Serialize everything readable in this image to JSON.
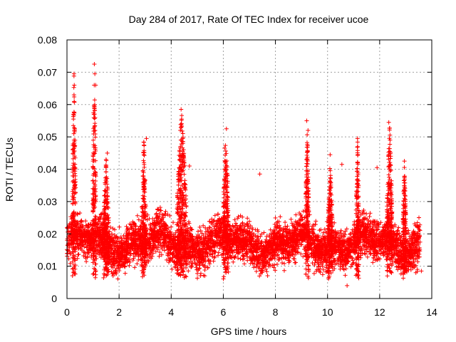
{
  "chart_data": {
    "type": "scatter",
    "title": "Day 284 of 2017, Rate Of TEC Index for receiver ucoe",
    "xlabel": "GPS time / hours",
    "ylabel": "ROTI / TECUs",
    "xlim": [
      0,
      14
    ],
    "ylim": [
      0,
      0.08
    ],
    "xticks": [
      0,
      2,
      4,
      6,
      8,
      10,
      12,
      14
    ],
    "xtick_labels": [
      "0",
      "2",
      "4",
      "6",
      "8",
      "10",
      "12",
      "14"
    ],
    "yticks": [
      0,
      0.01,
      0.02,
      0.03,
      0.04,
      0.05,
      0.06,
      0.07,
      0.08
    ],
    "ytick_labels": [
      "0",
      "0.01",
      "0.02",
      "0.03",
      "0.04",
      "0.05",
      "0.06",
      "0.07",
      "0.08"
    ],
    "grid": true,
    "marker": "plus",
    "color": "#ff0000",
    "series": [
      {
        "name": "ROTI",
        "x_range": [
          0.0,
          13.55
        ],
        "typical_range": [
          0.006,
          0.035
        ],
        "highlights": [
          {
            "x": 0.27,
            "y": 0.0695
          },
          {
            "x": 0.28,
            "y": 0.066
          },
          {
            "x": 0.27,
            "y": 0.063
          },
          {
            "x": 0.25,
            "y": 0.057
          },
          {
            "x": 0.3,
            "y": 0.0525
          },
          {
            "x": 0.27,
            "y": 0.049
          },
          {
            "x": 1.05,
            "y": 0.0725
          },
          {
            "x": 1.07,
            "y": 0.0695
          },
          {
            "x": 1.1,
            "y": 0.066
          },
          {
            "x": 1.02,
            "y": 0.0575
          },
          {
            "x": 1.08,
            "y": 0.052
          },
          {
            "x": 3.05,
            "y": 0.0495
          },
          {
            "x": 4.38,
            "y": 0.0585
          },
          {
            "x": 4.4,
            "y": 0.0555
          },
          {
            "x": 4.35,
            "y": 0.052
          },
          {
            "x": 4.45,
            "y": 0.048
          },
          {
            "x": 6.12,
            "y": 0.0525
          },
          {
            "x": 6.05,
            "y": 0.0465
          },
          {
            "x": 9.2,
            "y": 0.055
          },
          {
            "x": 9.25,
            "y": 0.052
          },
          {
            "x": 10.1,
            "y": 0.0445
          },
          {
            "x": 11.15,
            "y": 0.0495
          },
          {
            "x": 12.35,
            "y": 0.0545
          },
          {
            "x": 12.4,
            "y": 0.049
          },
          {
            "x": 12.38,
            "y": 0.0455
          },
          {
            "x": 12.95,
            "y": 0.0425
          },
          {
            "x": 1.55,
            "y": 0.045
          },
          {
            "x": 2.95,
            "y": 0.0445
          },
          {
            "x": 4.7,
            "y": 0.041
          },
          {
            "x": 7.4,
            "y": 0.0385
          },
          {
            "x": 10.55,
            "y": 0.0415
          },
          {
            "x": 11.9,
            "y": 0.0405
          },
          {
            "x": 13.6,
            "y": 0.0085
          },
          {
            "x": 10.75,
            "y": 0.004
          }
        ],
        "bursts": [
          {
            "center": 0.27,
            "peak": 0.07,
            "width": 0.06
          },
          {
            "center": 1.05,
            "peak": 0.073,
            "width": 0.06
          },
          {
            "center": 1.5,
            "peak": 0.045,
            "width": 0.1
          },
          {
            "center": 2.95,
            "peak": 0.05,
            "width": 0.08
          },
          {
            "center": 4.4,
            "peak": 0.059,
            "width": 0.18
          },
          {
            "center": 6.1,
            "peak": 0.053,
            "width": 0.1
          },
          {
            "center": 9.22,
            "peak": 0.055,
            "width": 0.06
          },
          {
            "center": 10.1,
            "peak": 0.045,
            "width": 0.08
          },
          {
            "center": 11.15,
            "peak": 0.05,
            "width": 0.06
          },
          {
            "center": 12.38,
            "peak": 0.055,
            "width": 0.1
          },
          {
            "center": 12.95,
            "peak": 0.043,
            "width": 0.06
          }
        ]
      }
    ]
  }
}
